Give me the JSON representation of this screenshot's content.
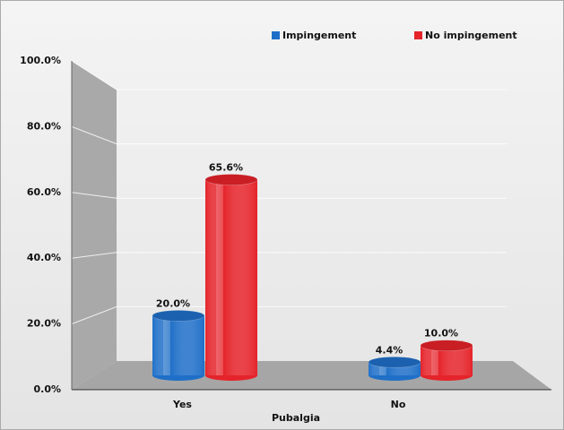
{
  "chart_data": {
    "type": "bar",
    "categories": [
      "Yes",
      "No"
    ],
    "xlabel": "Pubalgia",
    "series": [
      {
        "name": "Impingement",
        "color": "#1f6fc8",
        "values": [
          20.0,
          4.4
        ],
        "value_labels": [
          "20.0%",
          "4.4%"
        ]
      },
      {
        "name": "No impingement",
        "color": "#e5232a",
        "values": [
          65.6,
          10.0
        ],
        "value_labels": [
          "65.6%",
          "10.0%"
        ]
      }
    ],
    "ylim": [
      0,
      100
    ],
    "yticks": [
      {
        "value": 0,
        "label": "0.0%"
      },
      {
        "value": 20,
        "label": "20.0%"
      },
      {
        "value": 40,
        "label": "40.0%"
      },
      {
        "value": 60,
        "label": "60.0%"
      },
      {
        "value": 80,
        "label": "80.0%"
      },
      {
        "value": 100,
        "label": "100.0%"
      }
    ],
    "grid": true,
    "legend": "top"
  }
}
